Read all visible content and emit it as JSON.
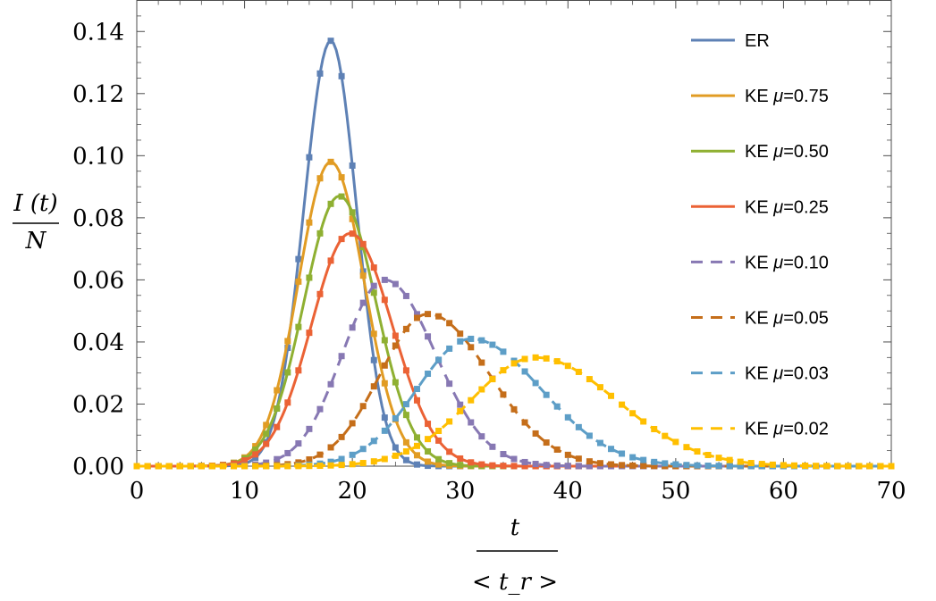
{
  "chart_data": {
    "type": "line",
    "xlabel_top": "t",
    "xlabel_bottom": "< t_r >",
    "ylabel_top": "I (t)",
    "ylabel_bottom": "N",
    "xlim": [
      0,
      70
    ],
    "ylim": [
      0,
      0.15
    ],
    "xticks": [
      0,
      10,
      20,
      30,
      40,
      50,
      60,
      70
    ],
    "xtick_labels": [
      "0",
      "10",
      "20",
      "30",
      "40",
      "50",
      "60",
      "70"
    ],
    "yticks": [
      0,
      0.02,
      0.04,
      0.06,
      0.08,
      0.1,
      0.12,
      0.14
    ],
    "ytick_labels": [
      "0.00",
      "0.02",
      "0.04",
      "0.06",
      "0.08",
      "0.10",
      "0.12",
      "0.14"
    ],
    "grid": false,
    "legend_position": "top-right",
    "series": [
      {
        "name": "ER",
        "legend_prefix": "ER",
        "legend_mu": "",
        "color": "#5E81B5",
        "dashed": false,
        "peak_t": 18.0,
        "peak": 0.137,
        "sigma_left": 2.5,
        "sigma_right": 2.4
      },
      {
        "name": "KE μ=0.75",
        "legend_prefix": "KE ",
        "legend_mu": "0.75",
        "color": "#E19C24",
        "dashed": false,
        "peak_t": 18.0,
        "peak": 0.098,
        "sigma_left": 3.0,
        "sigma_right": 3.1
      },
      {
        "name": "KE μ=0.50",
        "legend_prefix": "KE ",
        "legend_mu": "0.50",
        "color": "#8FB032",
        "dashed": false,
        "peak_t": 18.8,
        "peak": 0.087,
        "sigma_left": 3.3,
        "sigma_right": 3.4
      },
      {
        "name": "KE μ=0.25",
        "legend_prefix": "KE ",
        "legend_mu": "0.25",
        "color": "#EB6235",
        "dashed": false,
        "peak_t": 19.8,
        "peak": 0.075,
        "sigma_left": 3.6,
        "sigma_right": 3.9
      },
      {
        "name": "KE μ=0.10",
        "legend_prefix": "KE ",
        "legend_mu": "0.10",
        "color": "#8778B3",
        "dashed": true,
        "peak_t": 23.0,
        "peak": 0.06,
        "sigma_left": 3.9,
        "sigma_right": 4.7
      },
      {
        "name": "KE μ=0.05",
        "legend_prefix": "KE ",
        "legend_mu": "0.05",
        "color": "#C56E1A",
        "dashed": true,
        "peak_t": 27.0,
        "peak": 0.049,
        "sigma_left": 4.4,
        "sigma_right": 5.7
      },
      {
        "name": "KE μ=0.03",
        "legend_prefix": "KE ",
        "legend_mu": "0.03",
        "color": "#5D9EC7",
        "dashed": true,
        "peak_t": 31.0,
        "peak": 0.041,
        "sigma_left": 5.0,
        "sigma_right": 6.5
      },
      {
        "name": "KE μ=0.02",
        "legend_prefix": "KE ",
        "legend_mu": "0.02",
        "color": "#FFBF00",
        "dashed": true,
        "peak_t": 37.0,
        "peak": 0.035,
        "sigma_left": 6.0,
        "sigma_right": 7.5
      }
    ]
  }
}
